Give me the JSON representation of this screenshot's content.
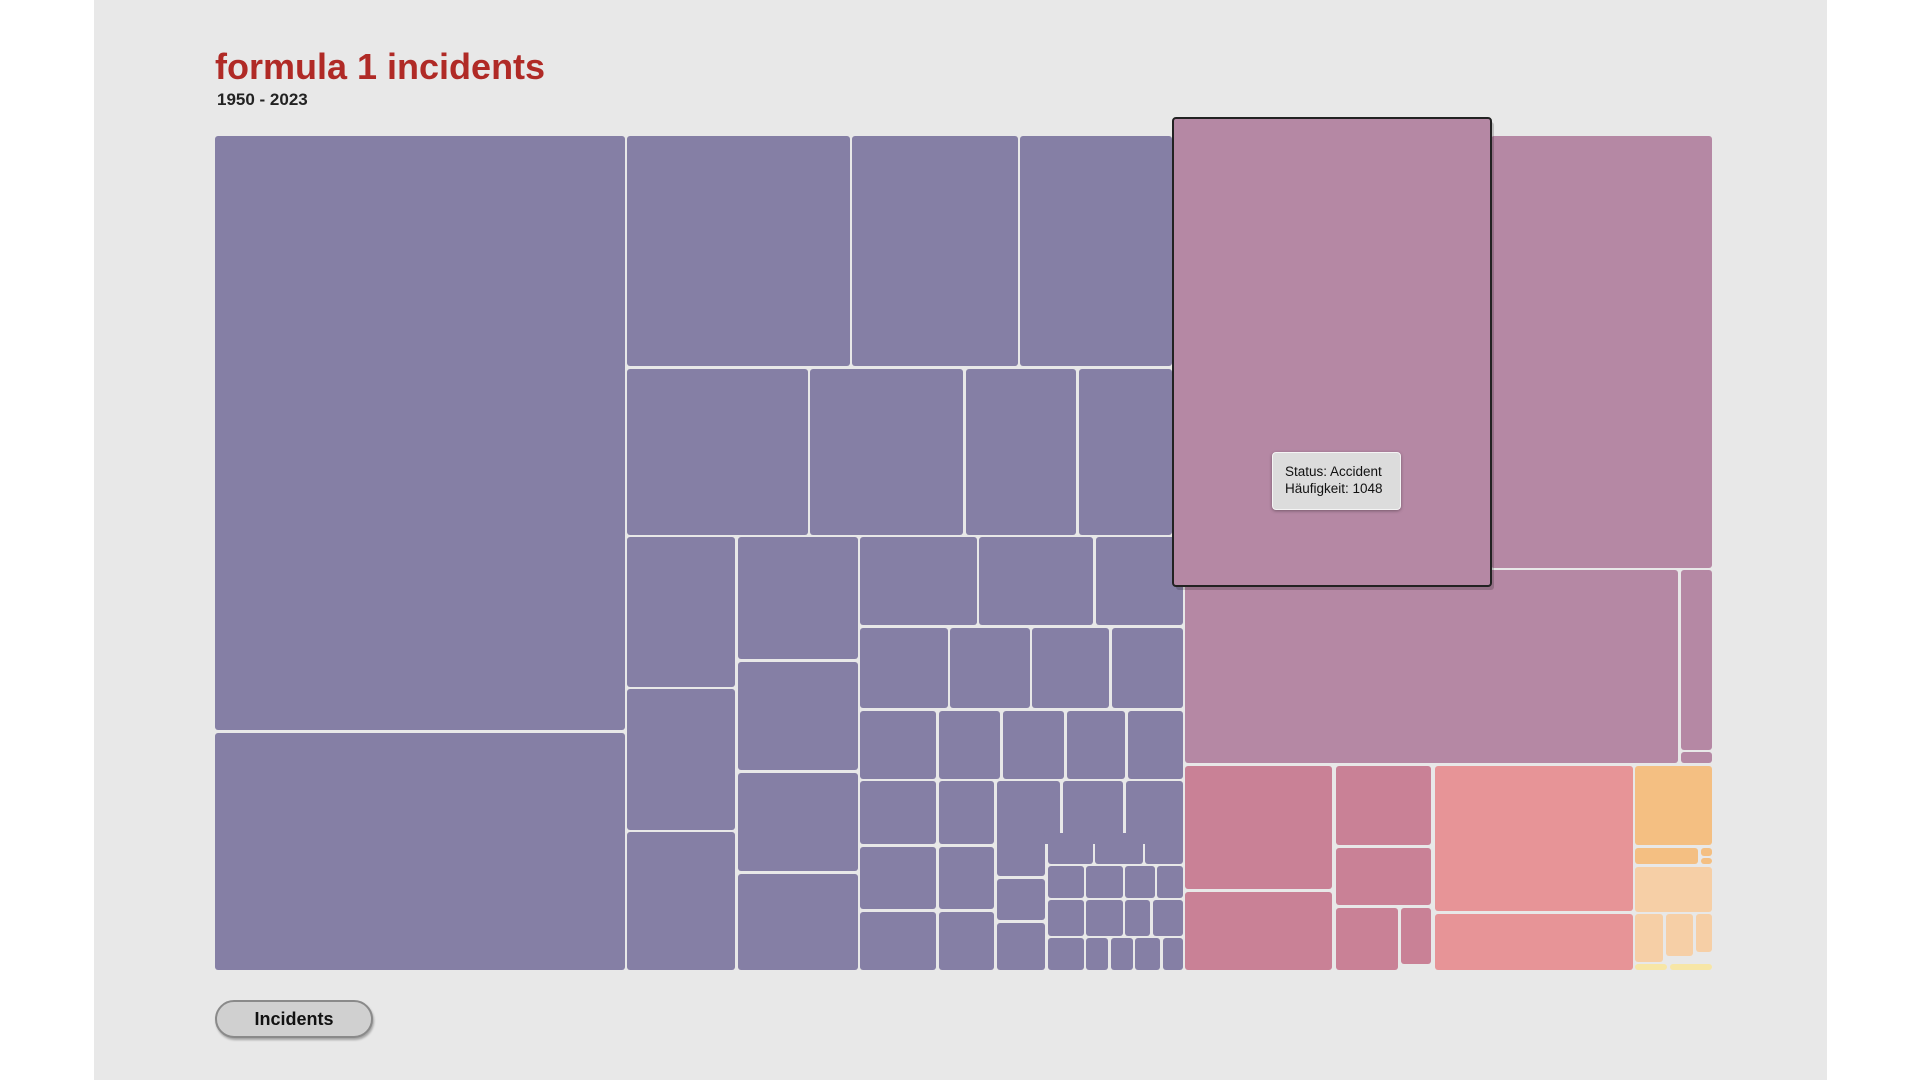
{
  "page": {
    "title": "formula 1 incidents",
    "subtitle": "1950 - 2023"
  },
  "tooltip": {
    "status_line": "Status: Accident",
    "frequency_line": "Häufigkeit: 1048"
  },
  "controls": {
    "incidents_button": "Incidents"
  },
  "colors": {
    "background": "#e8e8e8",
    "title": "#b02a26",
    "group_purple": "#857fa5",
    "group_mauve": "#b588a4",
    "group_rose": "#c98196",
    "group_salmon": "#e79497",
    "group_orange": "#f4bf82",
    "group_peach": "#f6cfa6",
    "group_yellow": "#f7e6a6"
  },
  "chart_data": {
    "type": "treemap",
    "title": "formula 1 incidents",
    "subtitle": "1950 - 2023",
    "highlighted": {
      "status": "Accident",
      "count": 1048
    },
    "series": [
      {
        "color": "#857fa5",
        "cells": 62
      },
      {
        "color": "#b588a4",
        "cells": 5
      },
      {
        "color": "#c98196",
        "cells": 6
      },
      {
        "color": "#e79497",
        "cells": 2
      },
      {
        "color": "#f4bf82",
        "cells": 4
      },
      {
        "color": "#f6cfa6",
        "cells": 4
      },
      {
        "color": "#f7e6a6",
        "cells": 2
      }
    ]
  }
}
